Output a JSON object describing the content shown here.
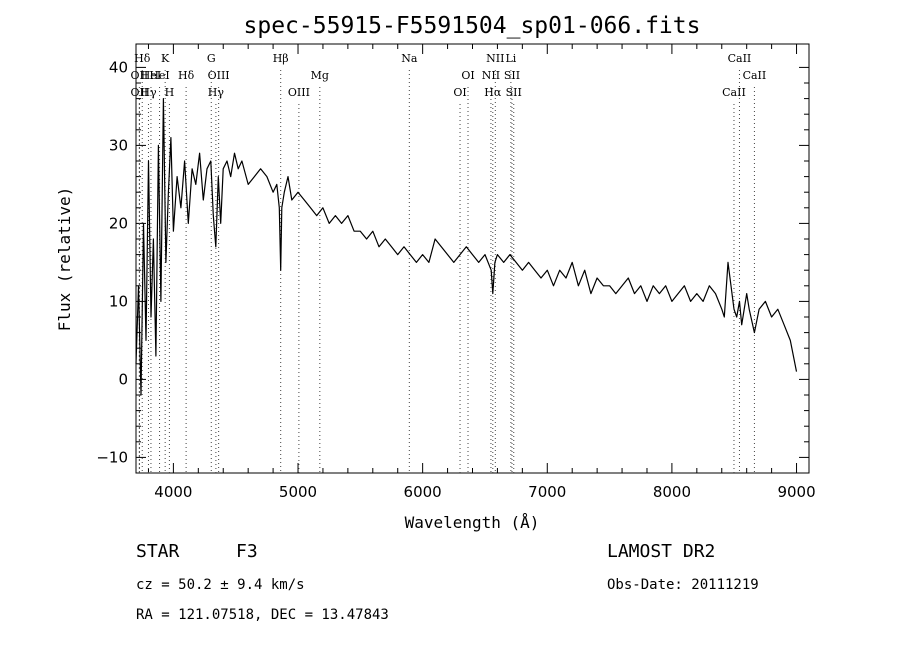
{
  "chart_data": {
    "type": "line",
    "title": "spec-55915-F5591504_sp01-066.fits",
    "xlabel": "Wavelength (Å)",
    "ylabel": "Flux (relative)",
    "xlim": [
      3700,
      9100
    ],
    "ylim": [
      -12,
      43
    ],
    "xticks": [
      4000,
      5000,
      6000,
      7000,
      8000,
      9000
    ],
    "yticks": [
      -10,
      0,
      10,
      20,
      30,
      40
    ],
    "grid": false,
    "series": [
      {
        "x": [
          3700,
          3720,
          3740,
          3760,
          3780,
          3800,
          3820,
          3840,
          3860,
          3880,
          3900,
          3920,
          3940,
          3960,
          3980,
          4000,
          4030,
          4060,
          4090,
          4120,
          4150,
          4180,
          4210,
          4240,
          4270,
          4300,
          4320,
          4340,
          4360,
          4380,
          4400,
          4430,
          4460,
          4490,
          4520,
          4550,
          4600,
          4650,
          4700,
          4750,
          4800,
          4830,
          4850,
          4861,
          4870,
          4890,
          4920,
          4950,
          5000,
          5050,
          5100,
          5150,
          5200,
          5250,
          5300,
          5350,
          5400,
          5450,
          5500,
          5550,
          5600,
          5650,
          5700,
          5750,
          5800,
          5850,
          5900,
          5950,
          6000,
          6050,
          6100,
          6150,
          6200,
          6250,
          6300,
          6350,
          6400,
          6450,
          6500,
          6550,
          6563,
          6580,
          6600,
          6650,
          6700,
          6750,
          6800,
          6850,
          6900,
          6950,
          7000,
          7050,
          7100,
          7150,
          7200,
          7250,
          7300,
          7350,
          7400,
          7450,
          7500,
          7550,
          7600,
          7650,
          7700,
          7750,
          7800,
          7850,
          7900,
          7950,
          8000,
          8050,
          8100,
          8150,
          8200,
          8250,
          8300,
          8350,
          8400,
          8420,
          8450,
          8498,
          8520,
          8542,
          8560,
          8600,
          8620,
          8662,
          8700,
          8750,
          8800,
          8850,
          8900,
          8950,
          9000
        ],
        "values": [
          2,
          12,
          -2,
          20,
          5,
          28,
          8,
          18,
          3,
          30,
          10,
          36,
          15,
          24,
          31,
          19,
          26,
          22,
          28,
          20,
          27,
          25,
          29,
          23,
          27,
          28,
          21,
          17,
          26,
          20,
          27,
          28,
          26,
          29,
          27,
          28,
          25,
          26,
          27,
          26,
          24,
          25,
          22,
          14,
          22,
          24,
          26,
          23,
          24,
          23,
          22,
          21,
          22,
          20,
          21,
          20,
          21,
          19,
          19,
          18,
          19,
          17,
          18,
          17,
          16,
          17,
          16,
          15,
          16,
          15,
          18,
          17,
          16,
          15,
          16,
          17,
          16,
          15,
          16,
          14,
          11,
          15,
          16,
          15,
          16,
          15,
          14,
          15,
          14,
          13,
          14,
          12,
          14,
          13,
          15,
          12,
          14,
          11,
          13,
          12,
          12,
          11,
          12,
          13,
          11,
          12,
          10,
          12,
          11,
          12,
          10,
          11,
          12,
          10,
          11,
          10,
          12,
          11,
          9,
          8,
          15,
          9,
          8,
          10,
          7,
          11,
          9,
          6,
          9,
          10,
          8,
          9,
          7,
          5,
          1
        ]
      }
    ],
    "lines": [
      {
        "label": "Hδ",
        "wave": 3750,
        "row": 1
      },
      {
        "label": "OII",
        "wave": 3727,
        "row": 2
      },
      {
        "label": "OII",
        "wave": 3727,
        "row": 3
      },
      {
        "label": "HeI",
        "wave": 3820,
        "row": 2
      },
      {
        "label": "Hγ",
        "wave": 3800,
        "row": 3
      },
      {
        "label": "K",
        "wave": 3934,
        "row": 1
      },
      {
        "label": "HeI",
        "wave": 3889,
        "row": 2
      },
      {
        "label": "H",
        "wave": 3968,
        "row": 3
      },
      {
        "label": "Hδ",
        "wave": 4102,
        "row": 2
      },
      {
        "label": "G",
        "wave": 4304,
        "row": 1
      },
      {
        "label": "OIII",
        "wave": 4363,
        "row": 2
      },
      {
        "label": "Hγ",
        "wave": 4341,
        "row": 3
      },
      {
        "label": "Hβ",
        "wave": 4861,
        "row": 1
      },
      {
        "label": "OIII",
        "wave": 5007,
        "row": 3
      },
      {
        "label": "Mg",
        "wave": 5175,
        "row": 2
      },
      {
        "label": "Na",
        "wave": 5893,
        "row": 1
      },
      {
        "label": "OI",
        "wave": 6364,
        "row": 2
      },
      {
        "label": "OI",
        "wave": 6300,
        "row": 3
      },
      {
        "label": "NII",
        "wave": 6583,
        "row": 1
      },
      {
        "label": "Li",
        "wave": 6708,
        "row": 1
      },
      {
        "label": "NII",
        "wave": 6548,
        "row": 2
      },
      {
        "label": "SII",
        "wave": 6717,
        "row": 2
      },
      {
        "label": "Hα",
        "wave": 6563,
        "row": 3
      },
      {
        "label": "SII",
        "wave": 6731,
        "row": 3
      },
      {
        "label": "CaII",
        "wave": 8542,
        "row": 1
      },
      {
        "label": "CaII",
        "wave": 8662,
        "row": 2
      },
      {
        "label": "CaII",
        "wave": 8498,
        "row": 3
      }
    ]
  },
  "info": {
    "object_class": "STAR",
    "subclass": "F3",
    "cz": "cz = 50.2 ± 9.4 km/s",
    "radec": "RA = 121.07518, DEC =  13.47843",
    "survey": "LAMOST DR2",
    "obs_date": "Obs-Date: 20111219"
  }
}
